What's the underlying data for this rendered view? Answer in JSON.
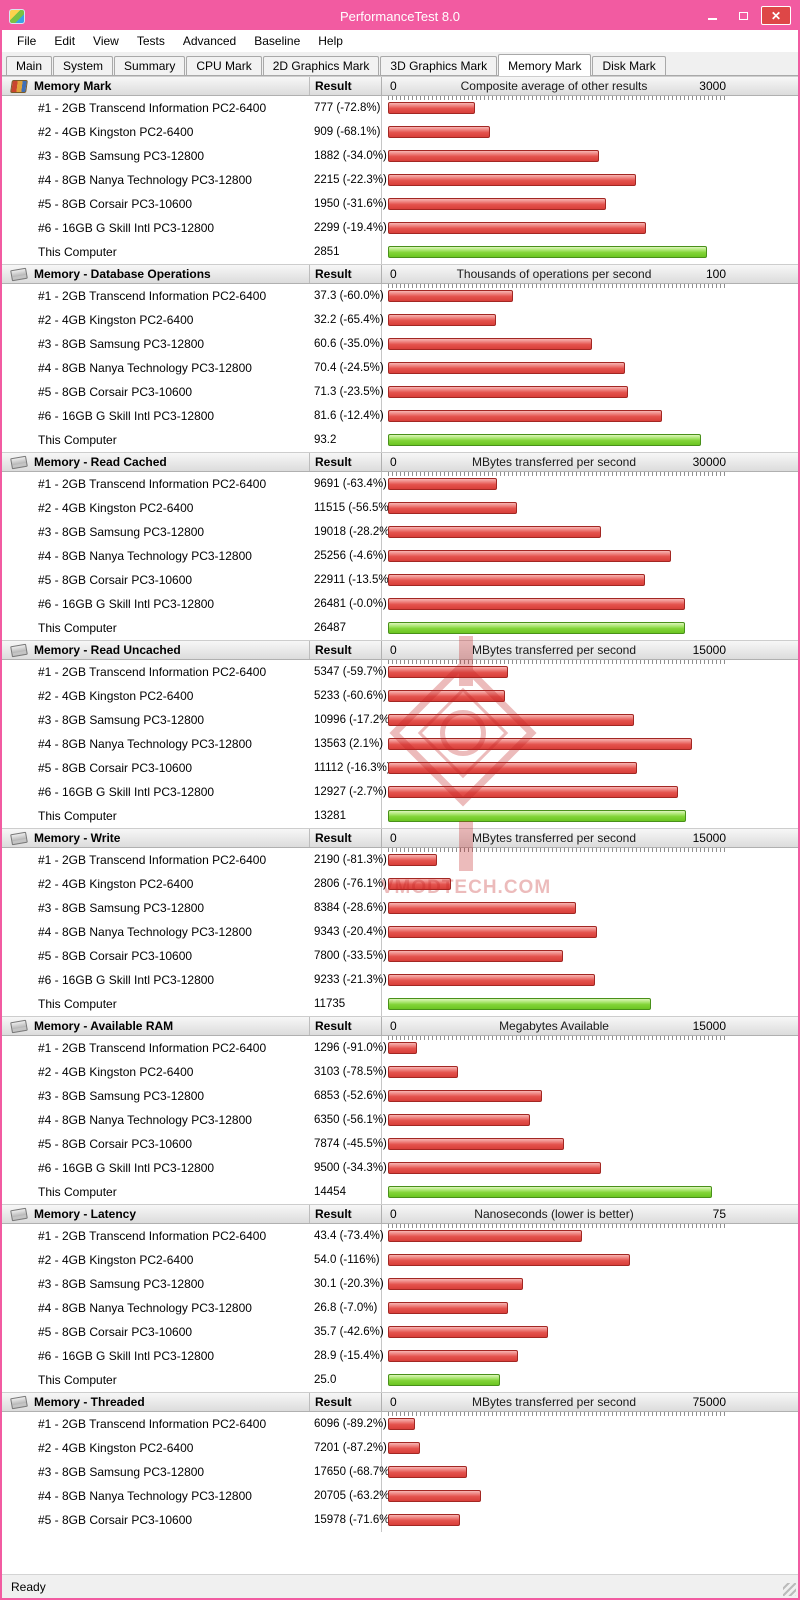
{
  "window": {
    "title": "PerformanceTest 8.0",
    "status": "Ready"
  },
  "menu": [
    "File",
    "Edit",
    "View",
    "Tests",
    "Advanced",
    "Baseline",
    "Help"
  ],
  "tabs": [
    {
      "label": "Main",
      "active": false
    },
    {
      "label": "System",
      "active": false
    },
    {
      "label": "Summary",
      "active": false
    },
    {
      "label": "CPU Mark",
      "active": false
    },
    {
      "label": "2D Graphics Mark",
      "active": false
    },
    {
      "label": "3D Graphics Mark",
      "active": false
    },
    {
      "label": "Memory Mark",
      "active": true
    },
    {
      "label": "Disk Mark",
      "active": false
    }
  ],
  "result_label": "Result",
  "watermark": {
    "text": "VMODTECH.COM"
  },
  "sections": [
    {
      "title": "Memory Mark",
      "icon": "books-icon",
      "scale_label": "Composite average of other results",
      "scale_min": "0",
      "scale_max": "3000",
      "rows": [
        {
          "name": "#1 - 2GB Transcend Information PC2-6400",
          "result": "777 (-72.8%)",
          "value": 777,
          "this_computer": false
        },
        {
          "name": "#2 - 4GB Kingston PC2-6400",
          "result": "909 (-68.1%)",
          "value": 909,
          "this_computer": false
        },
        {
          "name": "#3 - 8GB Samsung PC3-12800",
          "result": "1882 (-34.0%)",
          "value": 1882,
          "this_computer": false
        },
        {
          "name": "#4 - 8GB Nanya Technology PC3-12800",
          "result": "2215 (-22.3%)",
          "value": 2215,
          "this_computer": false
        },
        {
          "name": "#5 - 8GB Corsair PC3-10600",
          "result": "1950 (-31.6%)",
          "value": 1950,
          "this_computer": false
        },
        {
          "name": "#6 - 16GB G Skill Intl PC3-12800",
          "result": "2299 (-19.4%)",
          "value": 2299,
          "this_computer": false
        },
        {
          "name": "This Computer",
          "result": "2851",
          "value": 2851,
          "this_computer": true
        }
      ]
    },
    {
      "title": "Memory - Database Operations",
      "icon": "ram-icon",
      "scale_label": "Thousands of operations per second",
      "scale_min": "0",
      "scale_max": "100",
      "rows": [
        {
          "name": "#1 - 2GB Transcend Information PC2-6400",
          "result": "37.3 (-60.0%)",
          "value": 37.3,
          "this_computer": false
        },
        {
          "name": "#2 - 4GB Kingston PC2-6400",
          "result": "32.2 (-65.4%)",
          "value": 32.2,
          "this_computer": false
        },
        {
          "name": "#3 - 8GB Samsung PC3-12800",
          "result": "60.6 (-35.0%)",
          "value": 60.6,
          "this_computer": false
        },
        {
          "name": "#4 - 8GB Nanya Technology PC3-12800",
          "result": "70.4 (-24.5%)",
          "value": 70.4,
          "this_computer": false
        },
        {
          "name": "#5 - 8GB Corsair PC3-10600",
          "result": "71.3 (-23.5%)",
          "value": 71.3,
          "this_computer": false
        },
        {
          "name": "#6 - 16GB G Skill Intl PC3-12800",
          "result": "81.6 (-12.4%)",
          "value": 81.6,
          "this_computer": false
        },
        {
          "name": "This Computer",
          "result": "93.2",
          "value": 93.2,
          "this_computer": true
        }
      ]
    },
    {
      "title": "Memory - Read Cached",
      "icon": "ram-icon",
      "scale_label": "MBytes transferred per second",
      "scale_min": "0",
      "scale_max": "30000",
      "rows": [
        {
          "name": "#1 - 2GB Transcend Information PC2-6400",
          "result": "9691 (-63.4%)",
          "value": 9691,
          "this_computer": false
        },
        {
          "name": "#2 - 4GB Kingston PC2-6400",
          "result": "11515 (-56.5%)",
          "value": 11515,
          "this_computer": false
        },
        {
          "name": "#3 - 8GB Samsung PC3-12800",
          "result": "19018 (-28.2%)",
          "value": 19018,
          "this_computer": false
        },
        {
          "name": "#4 - 8GB Nanya Technology PC3-12800",
          "result": "25256 (-4.6%)",
          "value": 25256,
          "this_computer": false
        },
        {
          "name": "#5 - 8GB Corsair PC3-10600",
          "result": "22911 (-13.5%)",
          "value": 22911,
          "this_computer": false
        },
        {
          "name": "#6 - 16GB G Skill Intl PC3-12800",
          "result": "26481 (-0.0%)",
          "value": 26481,
          "this_computer": false
        },
        {
          "name": "This Computer",
          "result": "26487",
          "value": 26487,
          "this_computer": true
        }
      ]
    },
    {
      "title": "Memory - Read Uncached",
      "icon": "ram-icon",
      "scale_label": "MBytes transferred per second",
      "scale_min": "0",
      "scale_max": "15000",
      "rows": [
        {
          "name": "#1 - 2GB Transcend Information PC2-6400",
          "result": "5347 (-59.7%)",
          "value": 5347,
          "this_computer": false
        },
        {
          "name": "#2 - 4GB Kingston PC2-6400",
          "result": "5233 (-60.6%)",
          "value": 5233,
          "this_computer": false
        },
        {
          "name": "#3 - 8GB Samsung PC3-12800",
          "result": "10996 (-17.2%)",
          "value": 10996,
          "this_computer": false
        },
        {
          "name": "#4 - 8GB Nanya Technology PC3-12800",
          "result": "13563 (2.1%)",
          "value": 13563,
          "this_computer": false
        },
        {
          "name": "#5 - 8GB Corsair PC3-10600",
          "result": "11112 (-16.3%)",
          "value": 11112,
          "this_computer": false
        },
        {
          "name": "#6 - 16GB G Skill Intl PC3-12800",
          "result": "12927 (-2.7%)",
          "value": 12927,
          "this_computer": false
        },
        {
          "name": "This Computer",
          "result": "13281",
          "value": 13281,
          "this_computer": true
        }
      ]
    },
    {
      "title": "Memory - Write",
      "icon": "ram-icon",
      "scale_label": "MBytes transferred per second",
      "scale_min": "0",
      "scale_max": "15000",
      "rows": [
        {
          "name": "#1 - 2GB Transcend Information PC2-6400",
          "result": "2190 (-81.3%)",
          "value": 2190,
          "this_computer": false
        },
        {
          "name": "#2 - 4GB Kingston PC2-6400",
          "result": "2806 (-76.1%)",
          "value": 2806,
          "this_computer": false
        },
        {
          "name": "#3 - 8GB Samsung PC3-12800",
          "result": "8384 (-28.6%)",
          "value": 8384,
          "this_computer": false
        },
        {
          "name": "#4 - 8GB Nanya Technology PC3-12800",
          "result": "9343 (-20.4%)",
          "value": 9343,
          "this_computer": false
        },
        {
          "name": "#5 - 8GB Corsair PC3-10600",
          "result": "7800 (-33.5%)",
          "value": 7800,
          "this_computer": false
        },
        {
          "name": "#6 - 16GB G Skill Intl PC3-12800",
          "result": "9233 (-21.3%)",
          "value": 9233,
          "this_computer": false
        },
        {
          "name": "This Computer",
          "result": "11735",
          "value": 11735,
          "this_computer": true
        }
      ]
    },
    {
      "title": "Memory - Available RAM",
      "icon": "ram-icon",
      "scale_label": "Megabytes Available",
      "scale_min": "0",
      "scale_max": "15000",
      "rows": [
        {
          "name": "#1 - 2GB Transcend Information PC2-6400",
          "result": "1296 (-91.0%)",
          "value": 1296,
          "this_computer": false
        },
        {
          "name": "#2 - 4GB Kingston PC2-6400",
          "result": "3103 (-78.5%)",
          "value": 3103,
          "this_computer": false
        },
        {
          "name": "#3 - 8GB Samsung PC3-12800",
          "result": "6853 (-52.6%)",
          "value": 6853,
          "this_computer": false
        },
        {
          "name": "#4 - 8GB Nanya Technology PC3-12800",
          "result": "6350 (-56.1%)",
          "value": 6350,
          "this_computer": false
        },
        {
          "name": "#5 - 8GB Corsair PC3-10600",
          "result": "7874 (-45.5%)",
          "value": 7874,
          "this_computer": false
        },
        {
          "name": "#6 - 16GB G Skill Intl PC3-12800",
          "result": "9500 (-34.3%)",
          "value": 9500,
          "this_computer": false
        },
        {
          "name": "This Computer",
          "result": "14454",
          "value": 14454,
          "this_computer": true
        }
      ]
    },
    {
      "title": "Memory - Latency",
      "icon": "ram-icon",
      "scale_label": "Nanoseconds (lower is better)",
      "scale_min": "0",
      "scale_max": "75",
      "rows": [
        {
          "name": "#1 - 2GB Transcend Information PC2-6400",
          "result": "43.4 (-73.4%)",
          "value": 43.4,
          "this_computer": false
        },
        {
          "name": "#2 - 4GB Kingston PC2-6400",
          "result": "54.0 (-116%)",
          "value": 54.0,
          "this_computer": false
        },
        {
          "name": "#3 - 8GB Samsung PC3-12800",
          "result": "30.1 (-20.3%)",
          "value": 30.1,
          "this_computer": false
        },
        {
          "name": "#4 - 8GB Nanya Technology PC3-12800",
          "result": "26.8 (-7.0%)",
          "value": 26.8,
          "this_computer": false
        },
        {
          "name": "#5 - 8GB Corsair PC3-10600",
          "result": "35.7 (-42.6%)",
          "value": 35.7,
          "this_computer": false
        },
        {
          "name": "#6 - 16GB G Skill Intl PC3-12800",
          "result": "28.9 (-15.4%)",
          "value": 28.9,
          "this_computer": false
        },
        {
          "name": "This Computer",
          "result": "25.0",
          "value": 25.0,
          "this_computer": true
        }
      ]
    },
    {
      "title": "Memory - Threaded",
      "icon": "ram-icon",
      "scale_label": "MBytes transferred per second",
      "scale_min": "0",
      "scale_max": "75000",
      "rows": [
        {
          "name": "#1 - 2GB Transcend Information PC2-6400",
          "result": "6096 (-89.2%)",
          "value": 6096,
          "this_computer": false
        },
        {
          "name": "#2 - 4GB Kingston PC2-6400",
          "result": "7201 (-87.2%)",
          "value": 7201,
          "this_computer": false
        },
        {
          "name": "#3 - 8GB Samsung PC3-12800",
          "result": "17650 (-68.7%)",
          "value": 17650,
          "this_computer": false
        },
        {
          "name": "#4 - 8GB Nanya Technology PC3-12800",
          "result": "20705 (-63.2%)",
          "value": 20705,
          "this_computer": false
        },
        {
          "name": "#5 - 8GB Corsair PC3-10600",
          "result": "15978 (-71.6%)",
          "value": 15978,
          "this_computer": false
        }
      ]
    }
  ]
}
